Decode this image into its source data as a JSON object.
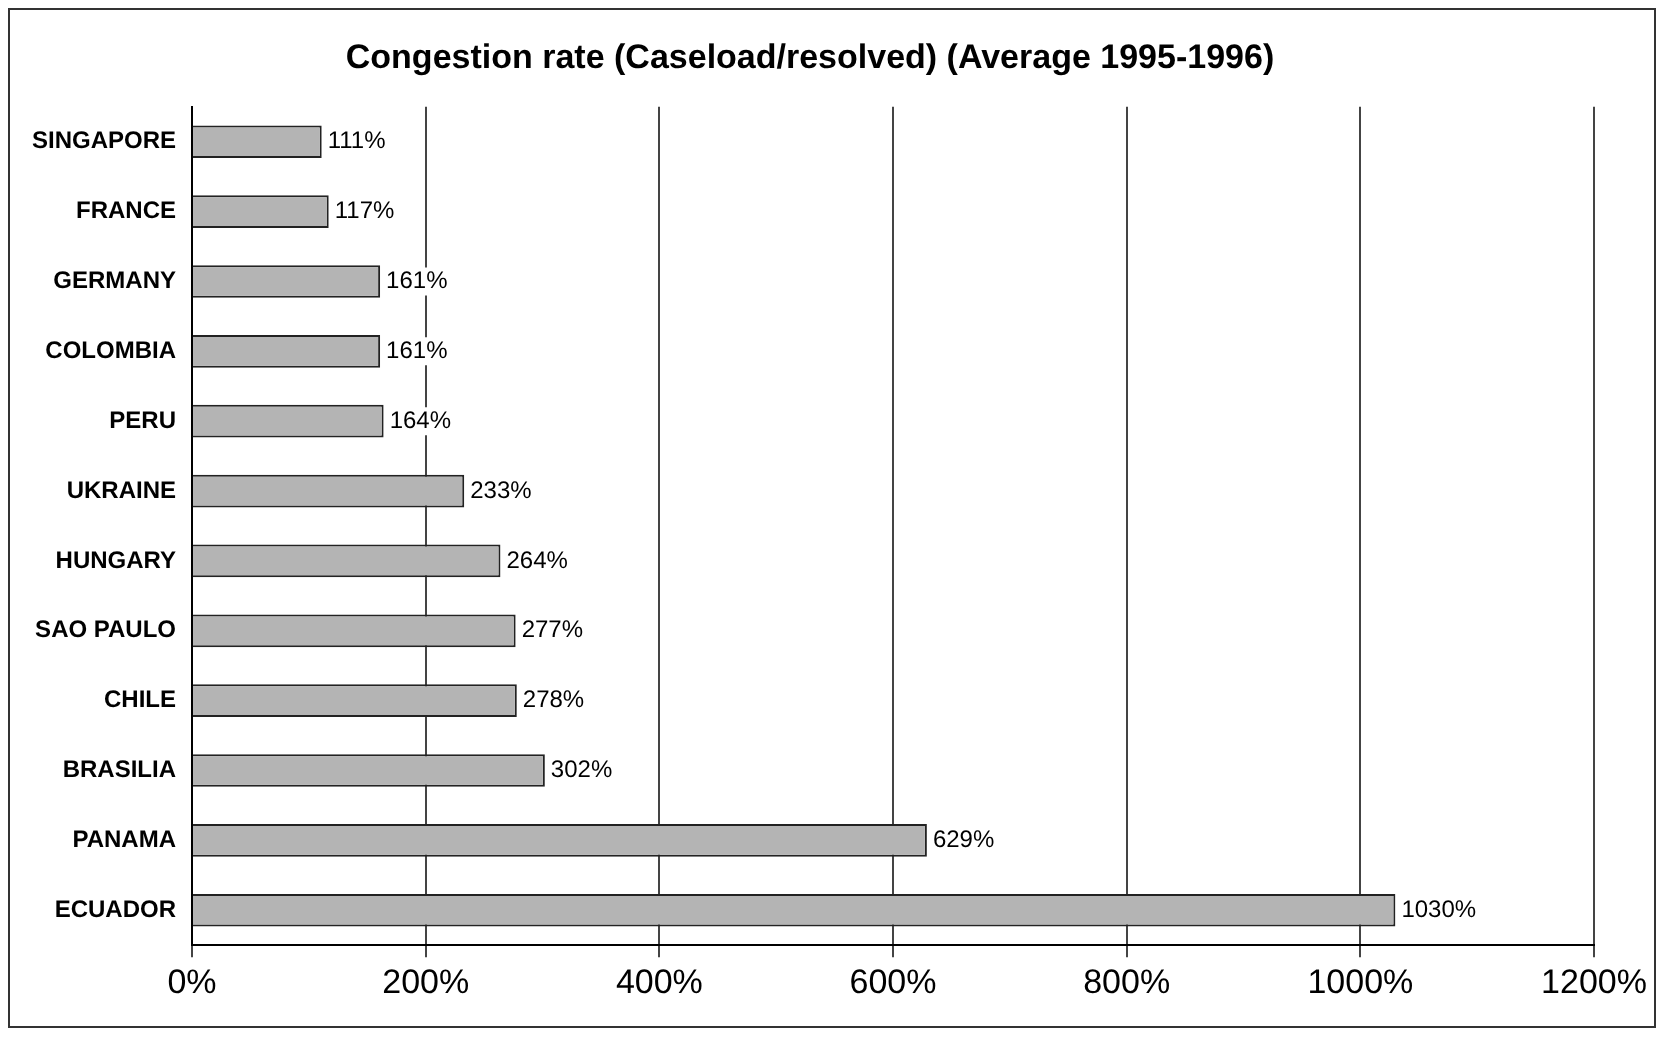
{
  "chart_data": {
    "type": "bar",
    "orientation": "horizontal",
    "title": "Congestion rate (Caseload/resolved) (Average 1995-1996)",
    "categories": [
      "SINGAPORE",
      "FRANCE",
      "GERMANY",
      "COLOMBIA",
      "PERU",
      "UKRAINE",
      "HUNGARY",
      "SAO PAULO",
      "CHILE",
      "BRASILIA",
      "PANAMA",
      "ECUADOR"
    ],
    "values": [
      111,
      117,
      161,
      161,
      164,
      233,
      264,
      277,
      278,
      302,
      629,
      1030
    ],
    "value_labels": [
      "111%",
      "117%",
      "161%",
      "161%",
      "164%",
      "233%",
      "264%",
      "277%",
      "278%",
      "302%",
      "629%",
      "1030%"
    ],
    "color": "#b4b4b4",
    "xlim": [
      0,
      1200
    ],
    "xticks": [
      {
        "value": 0,
        "label": "0%"
      },
      {
        "value": 200,
        "label": "200%"
      },
      {
        "value": 400,
        "label": "400%"
      },
      {
        "value": 600,
        "label": "600%"
      },
      {
        "value": 800,
        "label": "800%"
      },
      {
        "value": 1000,
        "label": "1000%"
      },
      {
        "value": 1200,
        "label": "1200%"
      }
    ],
    "grid": "x",
    "legend": false
  }
}
